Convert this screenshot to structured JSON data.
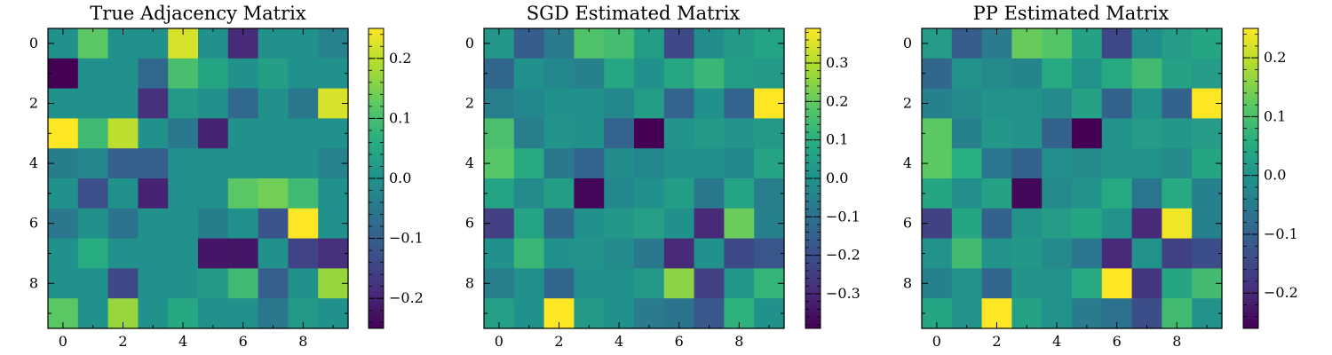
{
  "chart_data": [
    {
      "type": "heatmap",
      "title": "True Adjacency Matrix",
      "x_ticks": [
        "0",
        "2",
        "4",
        "6",
        "8"
      ],
      "y_ticks": [
        "0",
        "2",
        "4",
        "6",
        "8"
      ],
      "colorbar": {
        "min": -0.25,
        "max": 0.25,
        "tick_values": [
          -0.2,
          -0.1,
          0.0,
          0.1,
          0.2
        ],
        "tick_labels": [
          "−0.2",
          "−0.1",
          "0.0",
          "0.1",
          "0.2"
        ]
      },
      "colormap": "viridis",
      "matrix": [
        [
          0,
          0.12,
          0,
          0,
          0.22,
          0,
          -0.19,
          0,
          0,
          -0.03
        ],
        [
          -0.25,
          0,
          0,
          -0.08,
          0.1,
          0.04,
          0,
          0.03,
          0,
          0
        ],
        [
          0,
          0,
          0,
          -0.18,
          0.02,
          0,
          -0.08,
          0,
          -0.05,
          0.22
        ],
        [
          0.25,
          0.09,
          0.2,
          0,
          -0.05,
          -0.2,
          0,
          0,
          0,
          0
        ],
        [
          -0.04,
          -0.02,
          -0.1,
          -0.1,
          0,
          0,
          0,
          0,
          0,
          -0.03
        ],
        [
          0,
          -0.13,
          0,
          -0.2,
          0,
          0,
          0.12,
          0.14,
          0.09,
          0
        ],
        [
          -0.05,
          0,
          -0.06,
          0,
          0,
          -0.04,
          0,
          -0.12,
          0.25,
          0
        ],
        [
          0,
          0.06,
          0,
          0,
          0,
          -0.22,
          -0.22,
          0,
          -0.15,
          -0.18
        ],
        [
          0,
          0,
          -0.14,
          0,
          0,
          0.02,
          0.09,
          -0.1,
          0,
          0.17
        ],
        [
          0.12,
          0,
          0.17,
          0,
          0.05,
          0,
          0,
          -0.05,
          0.02,
          0
        ]
      ]
    },
    {
      "type": "heatmap",
      "title": "SGD Estimated Matrix",
      "x_ticks": [
        "0",
        "2",
        "4",
        "6",
        "8"
      ],
      "y_ticks": [
        "0",
        "2",
        "4",
        "6",
        "8"
      ],
      "colorbar": {
        "min": -0.39,
        "max": 0.39,
        "tick_values": [
          -0.3,
          -0.2,
          -0.1,
          0.0,
          0.1,
          0.2,
          0.3
        ],
        "tick_labels": [
          "−0.3",
          "−0.2",
          "−0.1",
          "0.0",
          "0.1",
          "0.2",
          "0.3"
        ]
      },
      "colormap": "viridis",
      "matrix": [
        [
          0.02,
          -0.16,
          -0.07,
          0.17,
          0.15,
          0.04,
          -0.22,
          -0.01,
          0.03,
          0.06
        ],
        [
          -0.13,
          0,
          -0.03,
          -0.05,
          0.07,
          0,
          0.07,
          0.13,
          0.04,
          0.03
        ],
        [
          -0.06,
          -0.03,
          0,
          0,
          -0.03,
          0.04,
          -0.14,
          0,
          -0.14,
          0.39
        ],
        [
          0.16,
          -0.06,
          0.01,
          0,
          -0.14,
          -0.39,
          0.01,
          0.03,
          0.01,
          0.03
        ],
        [
          0.18,
          0.08,
          -0.08,
          -0.14,
          -0.01,
          -0.03,
          0,
          0,
          -0.03,
          0.06
        ],
        [
          0.06,
          -0.02,
          0.04,
          -0.38,
          -0.03,
          0,
          0.04,
          -0.08,
          0.06,
          -0.06
        ],
        [
          -0.24,
          0.06,
          -0.13,
          0,
          0.02,
          0.05,
          0,
          -0.3,
          0.21,
          -0.05
        ],
        [
          0,
          0.13,
          0,
          0.01,
          -0.02,
          -0.08,
          -0.3,
          0,
          -0.22,
          -0.18
        ],
        [
          -0.06,
          0,
          -0.13,
          0,
          0,
          0.03,
          0.25,
          -0.24,
          0.02,
          0.12
        ],
        [
          0.05,
          0,
          0.39,
          0.03,
          0,
          -0.07,
          -0.09,
          -0.18,
          0.11,
          0
        ]
      ]
    },
    {
      "type": "heatmap",
      "title": "PP Estimated Matrix",
      "x_ticks": [
        "0",
        "2",
        "4",
        "6",
        "8"
      ],
      "y_ticks": [
        "0",
        "2",
        "4",
        "6",
        "8"
      ],
      "colorbar": {
        "min": -0.26,
        "max": 0.25,
        "tick_values": [
          -0.2,
          -0.1,
          0.0,
          0.1,
          0.2
        ],
        "tick_labels": [
          "−0.2",
          "−0.1",
          "0.0",
          "0.1",
          "0.2"
        ]
      },
      "colormap": "viridis",
      "matrix": [
        [
          0.02,
          -0.11,
          -0.05,
          0.13,
          0.11,
          0.03,
          -0.15,
          -0.01,
          0.02,
          0.04
        ],
        [
          -0.09,
          0,
          -0.02,
          -0.03,
          0.05,
          0,
          0.05,
          0.09,
          0.03,
          0.02
        ],
        [
          -0.04,
          -0.02,
          0,
          0,
          -0.02,
          0.03,
          -0.1,
          0,
          -0.1,
          0.25
        ],
        [
          0.12,
          -0.04,
          0.01,
          0,
          -0.1,
          -0.26,
          0,
          0.02,
          0.01,
          0.02
        ],
        [
          0.12,
          0.06,
          -0.06,
          -0.1,
          -0.01,
          -0.02,
          0,
          0,
          -0.02,
          0.04
        ],
        [
          0.04,
          -0.01,
          0.03,
          -0.25,
          -0.02,
          0,
          0.05,
          -0.06,
          0.05,
          -0.04
        ],
        [
          -0.16,
          0.04,
          -0.1,
          0,
          0.02,
          0.04,
          0,
          -0.2,
          0.24,
          -0.04
        ],
        [
          0,
          0.09,
          0,
          0.01,
          -0.02,
          -0.06,
          -0.2,
          0,
          -0.16,
          -0.14
        ],
        [
          -0.04,
          0,
          -0.09,
          0,
          0,
          0.05,
          0.25,
          -0.18,
          0.04,
          0.09
        ],
        [
          0.04,
          0,
          0.25,
          0.03,
          0,
          -0.05,
          -0.07,
          -0.14,
          0.09,
          0
        ]
      ]
    }
  ]
}
